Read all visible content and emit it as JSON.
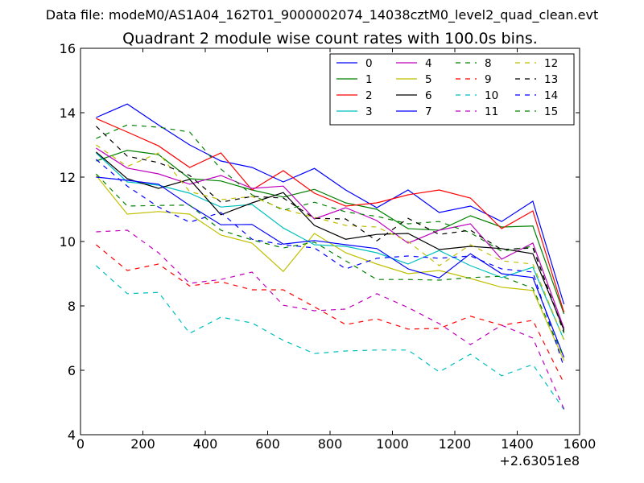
{
  "figure": {
    "suptitle": "Data file: modeM0/AS1A04_162T01_9000002074_14038cztM0_level2_quad_clean.evt",
    "title": "Quadrant 2 module wise count rates with 100.0s bins.",
    "x_offset_label": "+2.63051e8"
  },
  "chart_data": {
    "type": "line",
    "title": "Quadrant 2 module wise count rates with 100.0s bins.",
    "xlabel": "",
    "ylabel": "",
    "xlim": [
      0,
      1600
    ],
    "ylim": [
      4,
      16
    ],
    "xticks": [
      0,
      200,
      400,
      600,
      800,
      1000,
      1200,
      1400,
      1600
    ],
    "yticks": [
      4,
      6,
      8,
      10,
      12,
      14,
      16
    ],
    "x_offset": "+2.63051e8",
    "grid": false,
    "legend_position": "top-right",
    "x": [
      50,
      150,
      250,
      350,
      450,
      550,
      650,
      750,
      850,
      950,
      1050,
      1150,
      1250,
      1350,
      1450,
      1550
    ],
    "series": [
      {
        "name": "0",
        "color": "#0000ff",
        "dash": "solid",
        "values": [
          13.85,
          14.27,
          13.62,
          13.0,
          12.5,
          12.3,
          11.85,
          12.27,
          11.6,
          11.05,
          11.6,
          10.9,
          11.1,
          10.62,
          11.25,
          8.05
        ]
      },
      {
        "name": "1",
        "color": "#008000",
        "dash": "solid",
        "values": [
          12.5,
          12.83,
          12.7,
          11.95,
          11.88,
          11.6,
          11.38,
          11.62,
          11.2,
          11.0,
          10.4,
          10.35,
          10.8,
          10.45,
          10.48,
          7.75
        ]
      },
      {
        "name": "2",
        "color": "#ff0000",
        "dash": "solid",
        "values": [
          13.82,
          13.4,
          12.97,
          12.3,
          12.75,
          11.6,
          12.2,
          11.5,
          11.1,
          11.2,
          11.45,
          11.6,
          11.35,
          10.4,
          10.95,
          7.8
        ]
      },
      {
        "name": "3",
        "color": "#00bfbf",
        "dash": "solid",
        "values": [
          12.75,
          11.85,
          11.75,
          11.5,
          11.07,
          11.15,
          10.42,
          9.9,
          9.85,
          9.65,
          9.3,
          9.72,
          9.25,
          8.88,
          9.2,
          6.95
        ]
      },
      {
        "name": "4",
        "color": "#bf00bf",
        "dash": "solid",
        "values": [
          12.9,
          12.28,
          12.1,
          11.78,
          12.05,
          11.65,
          11.72,
          10.7,
          11.05,
          10.65,
          9.95,
          10.35,
          10.55,
          9.45,
          9.95,
          7.3
        ]
      },
      {
        "name": "5",
        "color": "#bfbf00",
        "dash": "solid",
        "values": [
          12.05,
          10.85,
          10.93,
          10.85,
          10.2,
          9.95,
          9.07,
          10.25,
          9.65,
          9.3,
          9.0,
          9.1,
          8.85,
          8.58,
          8.48,
          6.3
        ]
      },
      {
        "name": "6",
        "color": "#000000",
        "dash": "solid",
        "values": [
          12.78,
          11.95,
          11.65,
          11.93,
          10.83,
          11.2,
          11.52,
          10.5,
          10.07,
          10.22,
          10.25,
          9.75,
          9.85,
          9.78,
          9.62,
          7.25
        ]
      },
      {
        "name": "7",
        "color": "#0000ff",
        "dash": "solid",
        "values": [
          12.0,
          11.9,
          11.78,
          11.12,
          10.52,
          10.53,
          9.92,
          10.03,
          9.9,
          9.78,
          9.15,
          8.87,
          9.62,
          9.0,
          8.88,
          6.4
        ]
      },
      {
        "name": "8",
        "color": "#008000",
        "dash": "dashed",
        "values": [
          13.2,
          13.62,
          13.55,
          13.4,
          12.25,
          11.45,
          10.97,
          11.22,
          10.92,
          10.78,
          10.55,
          10.62,
          10.27,
          9.7,
          9.85,
          7.15
        ]
      },
      {
        "name": "9",
        "color": "#ff0000",
        "dash": "dashed",
        "values": [
          9.9,
          9.1,
          9.3,
          8.62,
          8.75,
          8.5,
          8.5,
          7.97,
          7.42,
          7.6,
          7.28,
          7.3,
          7.68,
          7.4,
          7.55,
          5.6
        ]
      },
      {
        "name": "10",
        "color": "#00bfbf",
        "dash": "dashed",
        "values": [
          9.25,
          8.38,
          8.42,
          7.15,
          7.65,
          7.47,
          6.93,
          6.52,
          6.6,
          6.63,
          6.63,
          5.95,
          6.5,
          5.83,
          6.18,
          4.78
        ]
      },
      {
        "name": "11",
        "color": "#bf00bf",
        "dash": "dashed",
        "values": [
          10.3,
          10.35,
          9.65,
          8.7,
          8.82,
          9.05,
          8.02,
          7.85,
          7.9,
          8.38,
          7.95,
          7.45,
          6.8,
          7.4,
          7.0,
          4.8
        ]
      },
      {
        "name": "12",
        "color": "#bfbf00",
        "dash": "dashed",
        "values": [
          13.0,
          12.33,
          12.75,
          11.55,
          11.3,
          11.4,
          11.0,
          10.75,
          10.5,
          10.45,
          10.0,
          9.25,
          9.9,
          9.4,
          9.3,
          6.95
        ]
      },
      {
        "name": "13",
        "color": "#000000",
        "dash": "dashed",
        "values": [
          13.58,
          12.65,
          12.45,
          12.05,
          11.22,
          11.4,
          11.35,
          10.72,
          10.7,
          10.02,
          10.72,
          10.22,
          10.35,
          9.75,
          9.8,
          7.2
        ]
      },
      {
        "name": "14",
        "color": "#0000ff",
        "dash": "dashed",
        "values": [
          12.55,
          11.72,
          11.07,
          10.6,
          10.9,
          10.07,
          9.9,
          9.8,
          9.15,
          9.48,
          9.55,
          9.48,
          9.55,
          9.15,
          9.05,
          6.1
        ]
      },
      {
        "name": "15",
        "color": "#008000",
        "dash": "dashed",
        "values": [
          12.1,
          11.1,
          11.12,
          11.13,
          10.35,
          10.05,
          9.8,
          9.98,
          9.4,
          8.82,
          8.82,
          8.8,
          8.88,
          8.92,
          8.55,
          6.4
        ]
      }
    ]
  }
}
